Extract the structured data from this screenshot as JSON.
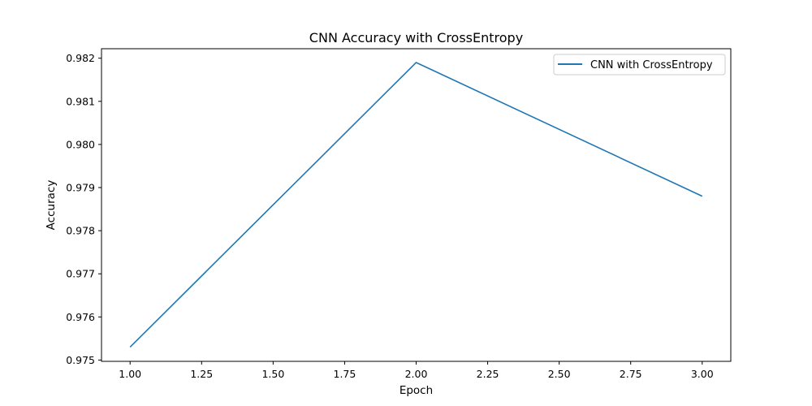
{
  "chart_data": {
    "type": "line",
    "title": "CNN Accuracy with CrossEntropy",
    "xlabel": "Epoch",
    "ylabel": "Accuracy",
    "xlim": [
      0.9,
      3.1
    ],
    "ylim": [
      0.97497,
      0.98222
    ],
    "x_ticks": [
      "1.00",
      "1.25",
      "1.50",
      "1.75",
      "2.00",
      "2.25",
      "2.50",
      "2.75",
      "3.00"
    ],
    "x_tick_values": [
      1.0,
      1.25,
      1.5,
      1.75,
      2.0,
      2.25,
      2.5,
      2.75,
      3.0
    ],
    "y_ticks": [
      "0.975",
      "0.976",
      "0.977",
      "0.978",
      "0.979",
      "0.980",
      "0.981",
      "0.982"
    ],
    "y_tick_values": [
      0.975,
      0.976,
      0.977,
      0.978,
      0.979,
      0.98,
      0.981,
      0.982
    ],
    "grid": false,
    "legend_position": "top-right",
    "series": [
      {
        "name": "CNN with CrossEntropy",
        "color": "#1f77b4",
        "x": [
          1,
          2,
          3
        ],
        "y": [
          0.9753,
          0.9819,
          0.9788
        ]
      }
    ]
  }
}
